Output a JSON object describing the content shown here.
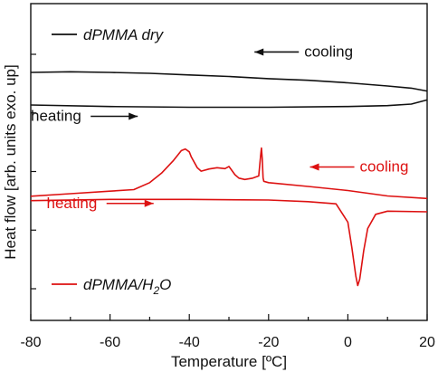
{
  "chart_data": {
    "type": "line",
    "xlabel": "Temperature [ºC]",
    "ylabel": "Heat flow [arb. units exo. up]",
    "xlim": [
      -80,
      20
    ],
    "ylim": [
      0,
      100
    ],
    "x_ticks": [
      -80,
      -60,
      -40,
      -20,
      0,
      20
    ],
    "x_tick_labels": [
      "-80",
      "-60",
      "-40",
      "-20",
      "0",
      "20"
    ],
    "y_tick_labels_shown": false,
    "grid": false,
    "legend": [
      {
        "label": "dPMMA dry",
        "color": "#111111",
        "placement": "top-left"
      },
      {
        "label_main": "dPMMA/H",
        "label_sub": "2",
        "label_tail": "O",
        "color": "#dd1111",
        "placement": "bottom-left"
      }
    ],
    "series": [
      {
        "name": "dPMMA dry cooling",
        "color": "#111111",
        "x": [
          -80,
          -70,
          -60,
          -50,
          -40,
          -30,
          -20,
          -10,
          0,
          10,
          16,
          20
        ],
        "y": [
          78.3,
          78.5,
          78.3,
          78.0,
          77.5,
          77.0,
          76.3,
          75.8,
          75.0,
          74.0,
          73.3,
          72.4
        ]
      },
      {
        "name": "dPMMA dry heating",
        "color": "#111111",
        "x": [
          -80,
          -60,
          -40,
          -20,
          0,
          10,
          16,
          20
        ],
        "y": [
          68.0,
          67.5,
          67.3,
          67.3,
          67.5,
          67.8,
          68.3,
          69.6
        ]
      },
      {
        "name": "dPMMA/H2O cooling",
        "color": "#dd1111",
        "x": [
          -80,
          -70,
          -60,
          -54,
          -50,
          -47,
          -44,
          -42,
          -41,
          -40,
          -39.5,
          -38,
          -37,
          -35,
          -33,
          -31,
          -30,
          -28.5,
          -27.5,
          -26,
          -24,
          -22.5,
          -22,
          -21.8,
          -21.6,
          -21.4,
          -21.2,
          -20,
          -10,
          0,
          10,
          20
        ],
        "y": [
          39.2,
          40.0,
          40.8,
          41.3,
          43.5,
          46.5,
          50.5,
          53.6,
          54.1,
          53.2,
          51.6,
          48.2,
          47.1,
          47.8,
          48.2,
          47.9,
          48.6,
          46.0,
          44.9,
          44.5,
          44.9,
          45.6,
          52.0,
          54.4,
          51.0,
          45.0,
          43.9,
          43.5,
          42.3,
          41.0,
          39.3,
          38.5
        ]
      },
      {
        "name": "dPMMA/H2O heating",
        "color": "#dd1111",
        "x": [
          -80,
          -60,
          -40,
          -20,
          -10,
          -3,
          0,
          1,
          2,
          2.5,
          3,
          4,
          5,
          7,
          10,
          20
        ],
        "y": [
          37.8,
          38.2,
          38.2,
          38.0,
          37.5,
          36.8,
          31.0,
          23.0,
          14.0,
          11.0,
          13.0,
          22.0,
          29.0,
          33.5,
          34.5,
          34.3
        ]
      }
    ],
    "annotations": [
      {
        "text": "cooling",
        "color": "#111111",
        "x": -11,
        "y": 83.3,
        "arrow": "left"
      },
      {
        "text": "heating",
        "color": "#111111",
        "x": -80,
        "y": 63.0,
        "arrow": "right"
      },
      {
        "text": "cooling",
        "color": "#dd1111",
        "x": 3,
        "y": 47.0,
        "arrow": "left"
      },
      {
        "text": "heating",
        "color": "#dd1111",
        "x": -76,
        "y": 35.5,
        "arrow": "right"
      }
    ]
  }
}
